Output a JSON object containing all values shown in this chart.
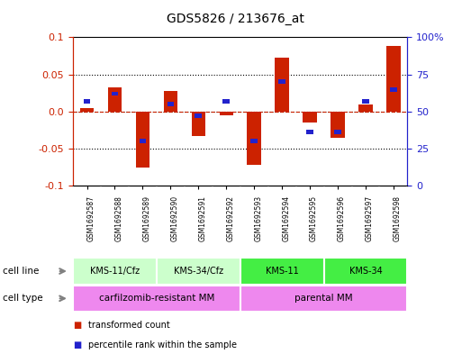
{
  "title": "GDS5826 / 213676_at",
  "samples": [
    "GSM1692587",
    "GSM1692588",
    "GSM1692589",
    "GSM1692590",
    "GSM1692591",
    "GSM1692592",
    "GSM1692593",
    "GSM1692594",
    "GSM1692595",
    "GSM1692596",
    "GSM1692597",
    "GSM1692598"
  ],
  "transformed_count": [
    0.005,
    0.032,
    -0.075,
    0.028,
    -0.033,
    -0.005,
    -0.072,
    0.072,
    -0.015,
    -0.035,
    0.01,
    0.088
  ],
  "percentile_rank": [
    57,
    62,
    30,
    55,
    47,
    57,
    30,
    70,
    36,
    36,
    57,
    65
  ],
  "ylim": [
    -0.1,
    0.1
  ],
  "yticks_left": [
    -0.1,
    -0.05,
    0.0,
    0.05,
    0.1
  ],
  "yticks_right": [
    0,
    25,
    50,
    75,
    100
  ],
  "bar_color_red": "#cc2200",
  "bar_color_blue": "#2222cc",
  "cell_line_groups": [
    {
      "label": "KMS-11/Cfz",
      "start": 0,
      "end": 3,
      "color": "#ccffcc"
    },
    {
      "label": "KMS-34/Cfz",
      "start": 3,
      "end": 6,
      "color": "#ccffcc"
    },
    {
      "label": "KMS-11",
      "start": 6,
      "end": 9,
      "color": "#44ee44"
    },
    {
      "label": "KMS-34",
      "start": 9,
      "end": 12,
      "color": "#44ee44"
    }
  ],
  "cell_type_groups": [
    {
      "label": "carfilzomib-resistant MM",
      "start": 0,
      "end": 6,
      "color": "#ee88ee"
    },
    {
      "label": "parental MM",
      "start": 6,
      "end": 12,
      "color": "#ee88ee"
    }
  ],
  "cell_line_label": "cell line",
  "cell_type_label": "cell type",
  "legend_red": "transformed count",
  "legend_blue": "percentile rank within the sample",
  "bar_width": 0.5,
  "blue_bar_height": 0.006,
  "blue_bar_width": 0.25,
  "gsm_bg_color": "#cccccc",
  "gsm_sep_color": "#ffffff"
}
